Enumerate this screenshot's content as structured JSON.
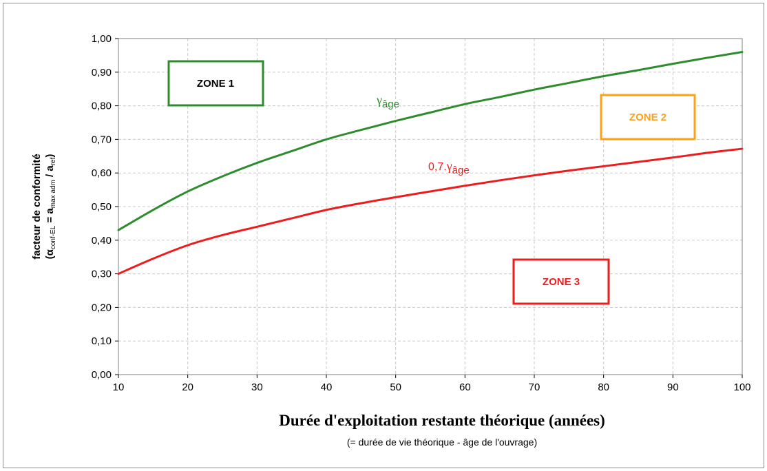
{
  "chart_data": {
    "type": "line",
    "xlabel": "Durée d'exploitation restante théorique (années)",
    "xlabel_sub": "(= durée de vie théorique - âge de l'ouvrage)",
    "ylabel": {
      "line1": "facteur de conformité",
      "line2_open": "(α",
      "line2_sub1": "conf-EL",
      "line2_mid": " = a",
      "line2_sub2": "max adm",
      "line2_mid2": " / a",
      "line2_sub3": "ref",
      "line2_close": ")"
    },
    "xlim": [
      10,
      100
    ],
    "ylim": [
      0,
      1
    ],
    "x_ticks": [
      10,
      20,
      30,
      40,
      50,
      60,
      70,
      80,
      90,
      100
    ],
    "x_tick_labels": [
      "10",
      "20",
      "30",
      "40",
      "50",
      "60",
      "70",
      "80",
      "90",
      "100"
    ],
    "y_ticks": [
      0,
      0.1,
      0.2,
      0.3,
      0.4,
      0.5,
      0.6,
      0.7,
      0.8,
      0.9,
      1.0
    ],
    "y_tick_labels": [
      "0,00",
      "0,10",
      "0,20",
      "0,30",
      "0,40",
      "0,50",
      "0,60",
      "0,70",
      "0,80",
      "0,90",
      "1,00"
    ],
    "grid": true,
    "series": [
      {
        "name": "γâge",
        "color": "#2e8b2e",
        "x": [
          10,
          15,
          20,
          25,
          30,
          35,
          40,
          45,
          50,
          55,
          60,
          65,
          70,
          75,
          80,
          85,
          90,
          95,
          100
        ],
        "y": [
          0.43,
          0.49,
          0.545,
          0.59,
          0.63,
          0.665,
          0.7,
          0.728,
          0.755,
          0.78,
          0.805,
          0.826,
          0.848,
          0.868,
          0.888,
          0.906,
          0.925,
          0.943,
          0.96
        ]
      },
      {
        "name": "0,7.γâge",
        "color": "#ee1c1c",
        "x": [
          10,
          15,
          20,
          25,
          30,
          35,
          40,
          45,
          50,
          55,
          60,
          65,
          70,
          75,
          80,
          85,
          90,
          95,
          100
        ],
        "y": [
          0.3,
          0.345,
          0.385,
          0.415,
          0.44,
          0.465,
          0.49,
          0.51,
          0.528,
          0.545,
          0.562,
          0.578,
          0.593,
          0.607,
          0.62,
          0.633,
          0.646,
          0.66,
          0.672
        ]
      }
    ],
    "annotations": [
      {
        "text_main": "γ",
        "text_sub": "âge",
        "prefix": "",
        "color": "#2e8b2e",
        "x": 49,
        "y": 0.82
      },
      {
        "text_main": "γ",
        "text_sub": "âge",
        "prefix": "0,7.",
        "color": "#ee1c1c",
        "x": 54.5,
        "y": 0.6
      }
    ],
    "zones": [
      {
        "label": "ZONE 1",
        "color": "#2e8b2e"
      },
      {
        "label": "ZONE 2",
        "color": "#ff9f1a"
      },
      {
        "label": "ZONE 3",
        "color": "#ee1c1c"
      }
    ]
  }
}
